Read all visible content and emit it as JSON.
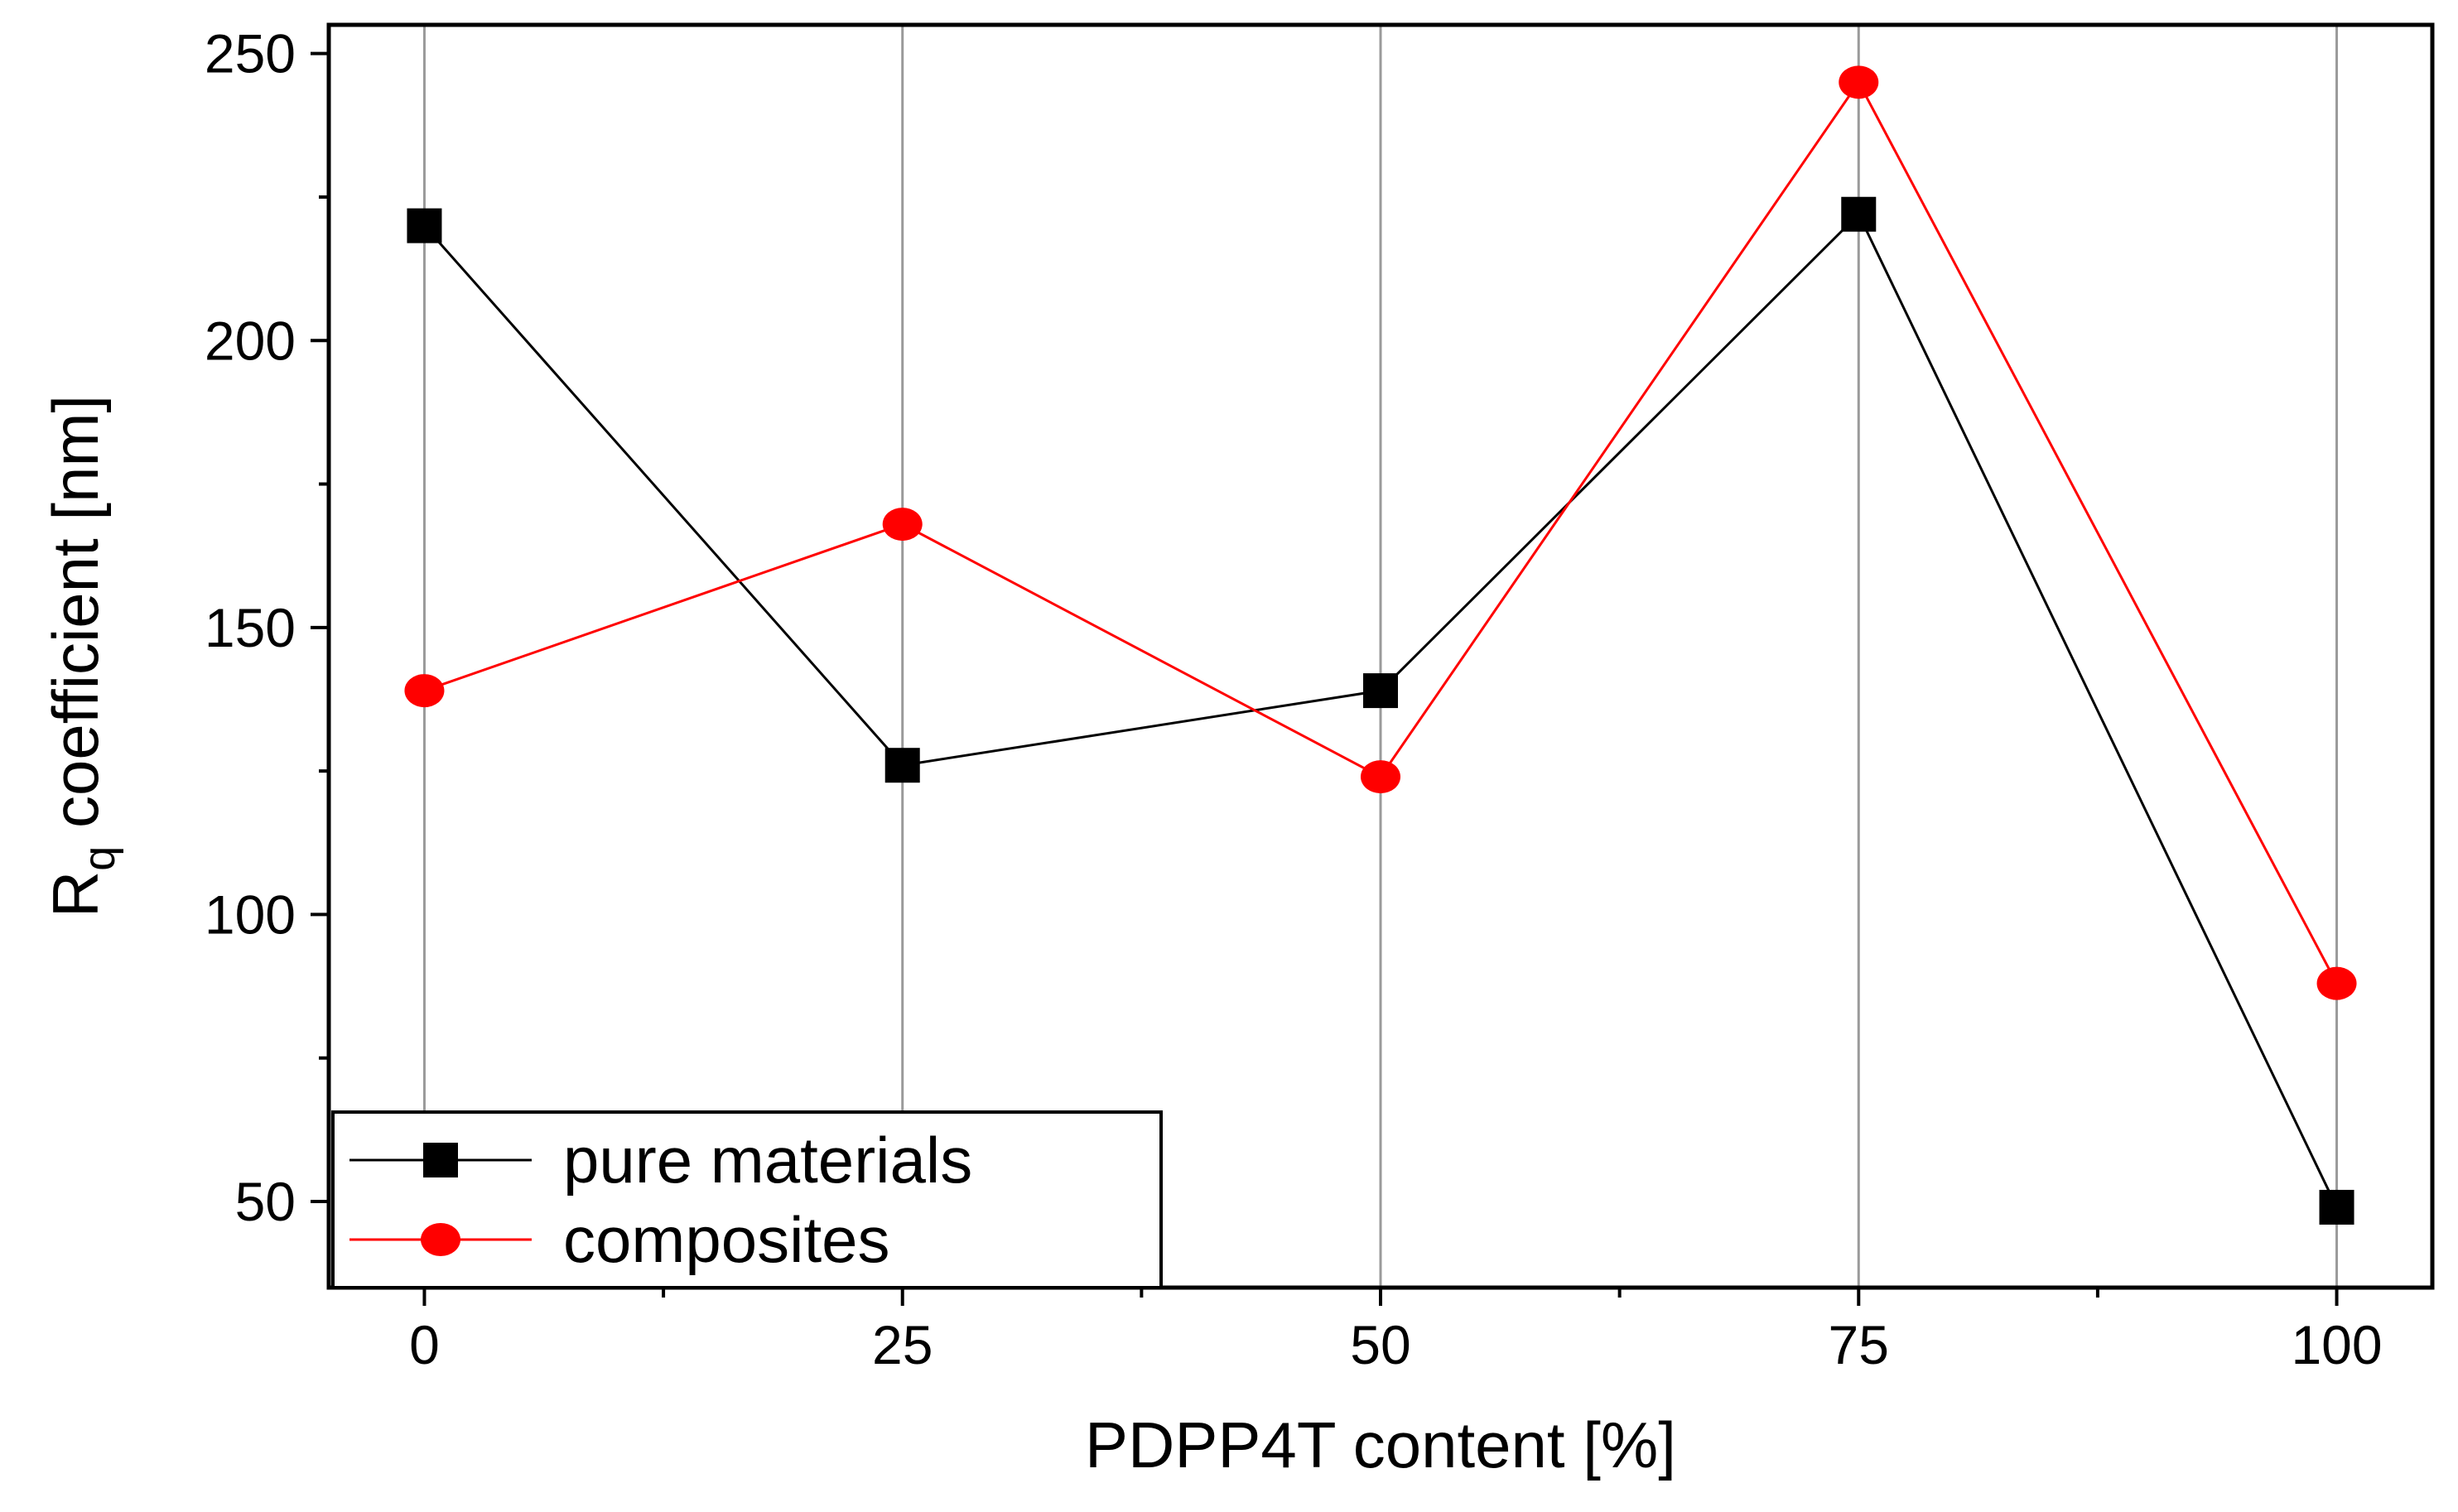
{
  "chart_data": {
    "type": "line",
    "xlabel": "PDPP4T content [%]",
    "ylabel": {
      "main": "R",
      "subscript": "q",
      "rest": " coefficient [nm]"
    },
    "xlim": [
      -5,
      105
    ],
    "ylim": [
      35,
      255
    ],
    "x_ticks": [
      0,
      25,
      50,
      75,
      100
    ],
    "x_minor_ticks": [
      12.5,
      37.5,
      62.5,
      87.5
    ],
    "y_ticks": [
      50,
      100,
      150,
      200,
      250
    ],
    "y_minor_ticks": [
      75,
      125,
      175,
      225
    ],
    "grid": "vertical lines at x major ticks",
    "legend_position": "bottom-left",
    "x": [
      0,
      25,
      50,
      75,
      100
    ],
    "series": [
      {
        "name": "pure materials",
        "color": "#000000",
        "marker": "square",
        "values": [
          220,
          126,
          139,
          222,
          49
        ]
      },
      {
        "name": "composites",
        "color": "#ff0000",
        "marker": "circle",
        "values": [
          139,
          168,
          124,
          245,
          88
        ]
      }
    ]
  }
}
